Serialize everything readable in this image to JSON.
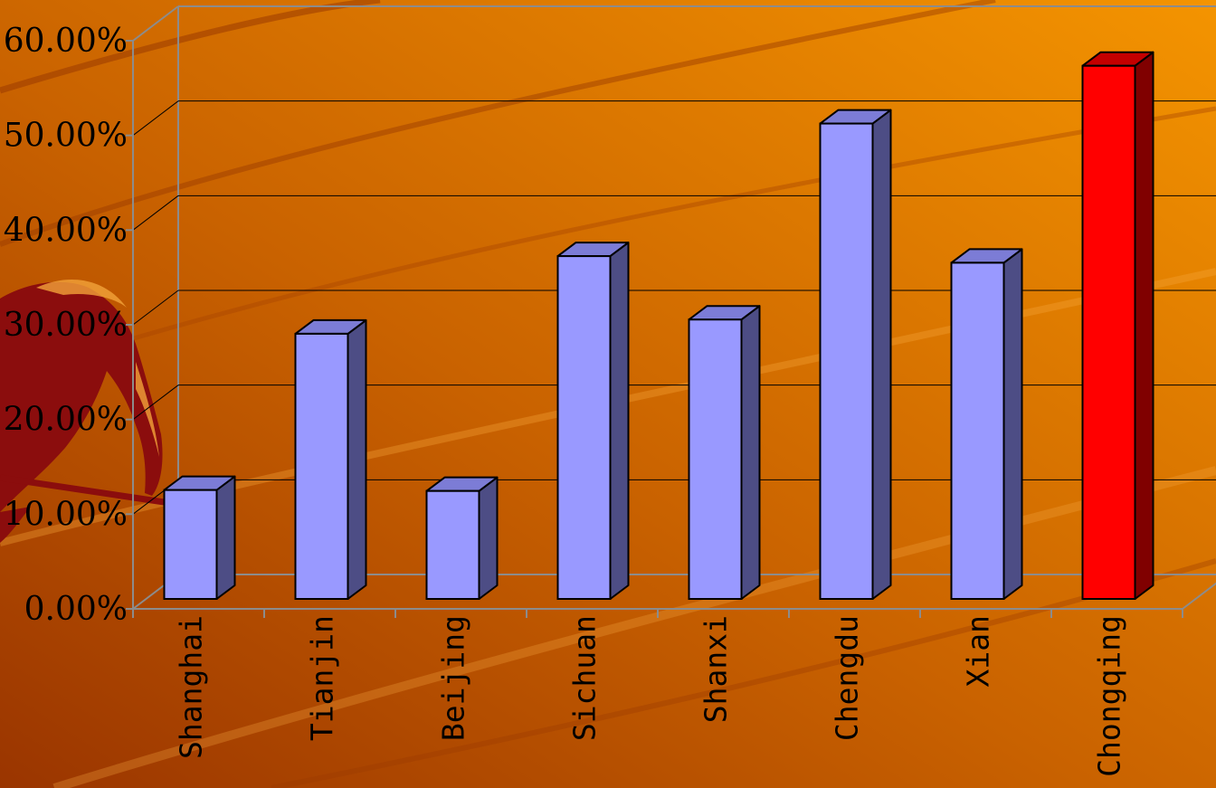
{
  "chart_data": {
    "type": "bar",
    "categories": [
      "Shanghai",
      "Tianjin",
      "Beijing",
      "Sichuan",
      "Shanxi",
      "Chengdu",
      "Xian",
      "Chongqing"
    ],
    "values": [
      11.5,
      28.0,
      11.4,
      36.2,
      29.5,
      50.2,
      35.5,
      56.3
    ],
    "ylim": [
      0,
      60
    ],
    "yticks": [
      "0.00%",
      "10.00%",
      "20.00%",
      "30.00%",
      "40.00%",
      "50.00%",
      "60.00%"
    ],
    "grid": true,
    "highlight_category": "Chongqing"
  },
  "colors": {
    "bar_front": "#9999FF",
    "bar_top": "#7C7CD6",
    "bar_side": "#4D4D85",
    "highlight_front": "#FF0000",
    "highlight_top": "#C40000",
    "highlight_side": "#800000",
    "background_light": "#F39200",
    "background_dark": "#A33A00",
    "figure": "#8B0D0D"
  }
}
